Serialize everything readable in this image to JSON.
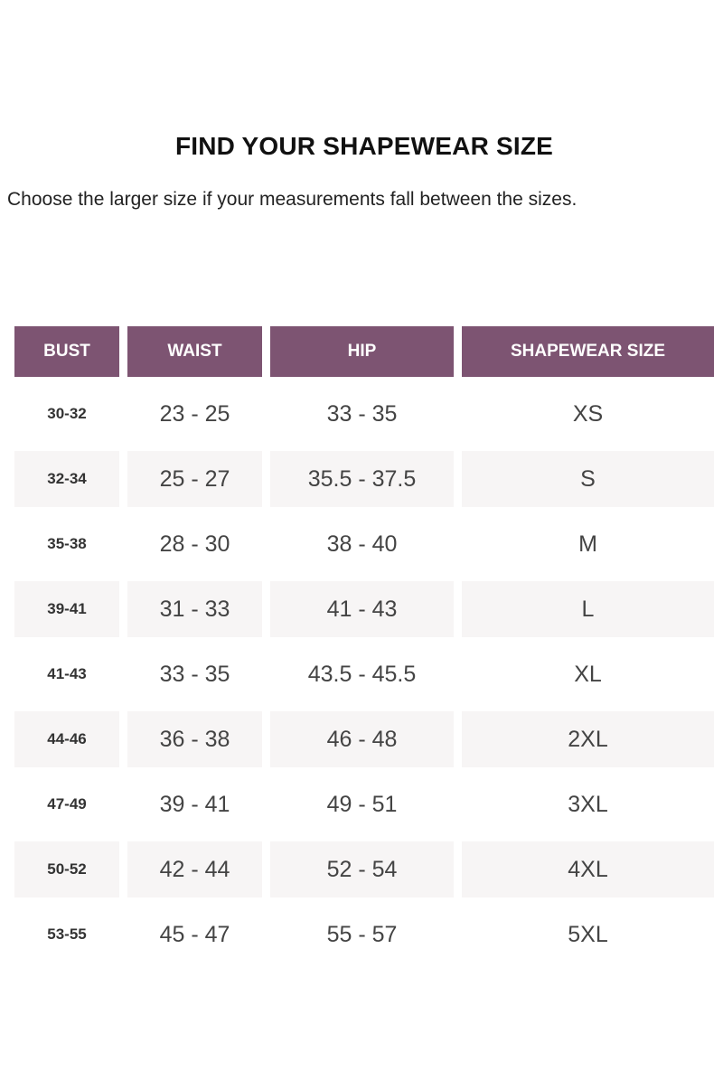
{
  "title": "FIND YOUR SHAPEWEAR SIZE",
  "subtitle": "Choose the larger size if your measurements fall between the sizes.",
  "colors": {
    "header_bg": "#7d5472",
    "header_text": "#ffffff",
    "alt_row_bg": "#f7f5f5"
  },
  "table": {
    "headers": [
      "BUST",
      "WAIST",
      "HIP",
      "SHAPEWEAR SIZE"
    ],
    "rows": [
      [
        "30-32",
        "23 - 25",
        "33 - 35",
        "XS"
      ],
      [
        "32-34",
        "25 - 27",
        "35.5 - 37.5",
        "S"
      ],
      [
        "35-38",
        "28 - 30",
        "38 - 40",
        "M"
      ],
      [
        "39-41",
        "31 - 33",
        "41 - 43",
        "L"
      ],
      [
        "41-43",
        "33 - 35",
        "43.5 - 45.5",
        "XL"
      ],
      [
        "44-46",
        "36 - 38",
        "46 - 48",
        "2XL"
      ],
      [
        "47-49",
        "39 - 41",
        "49 - 51",
        "3XL"
      ],
      [
        "50-52",
        "42 - 44",
        "52 - 54",
        "4XL"
      ],
      [
        "53-55",
        "45 - 47",
        "55 - 57",
        "5XL"
      ]
    ]
  }
}
